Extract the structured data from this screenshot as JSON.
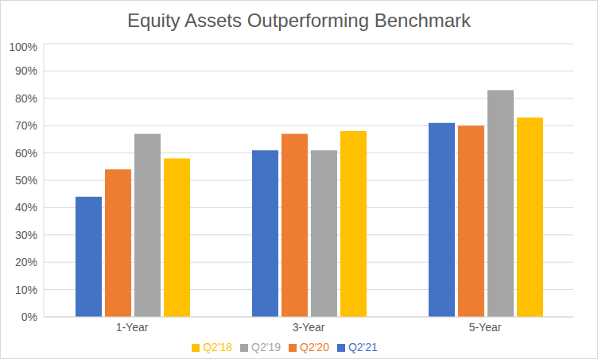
{
  "chart_data": {
    "type": "bar",
    "title": "Equity Assets Outperforming Benchmark",
    "categories": [
      "1-Year",
      "3-Year",
      "5-Year"
    ],
    "series": [
      {
        "name": "Q2'21",
        "color": "#4472c4",
        "values": [
          44,
          61,
          71
        ]
      },
      {
        "name": "Q2'20",
        "color": "#ed7d31",
        "values": [
          54,
          67,
          70
        ]
      },
      {
        "name": "Q2'19",
        "color": "#a5a5a5",
        "values": [
          67,
          61,
          83
        ]
      },
      {
        "name": "Q2'18",
        "color": "#ffc000",
        "values": [
          58,
          68,
          73
        ]
      }
    ],
    "ylim": [
      0,
      100
    ],
    "yticks": [
      {
        "value": 0,
        "label": "0%"
      },
      {
        "value": 10,
        "label": "10%"
      },
      {
        "value": 20,
        "label": "20%"
      },
      {
        "value": 30,
        "label": "30%"
      },
      {
        "value": 40,
        "label": "40%"
      },
      {
        "value": 50,
        "label": "50%"
      },
      {
        "value": 60,
        "label": "60%"
      },
      {
        "value": 70,
        "label": "70%"
      },
      {
        "value": 80,
        "label": "80%"
      },
      {
        "value": 90,
        "label": "90%"
      },
      {
        "value": 100,
        "label": "100%"
      }
    ],
    "grid": true,
    "legend": "bottom"
  }
}
